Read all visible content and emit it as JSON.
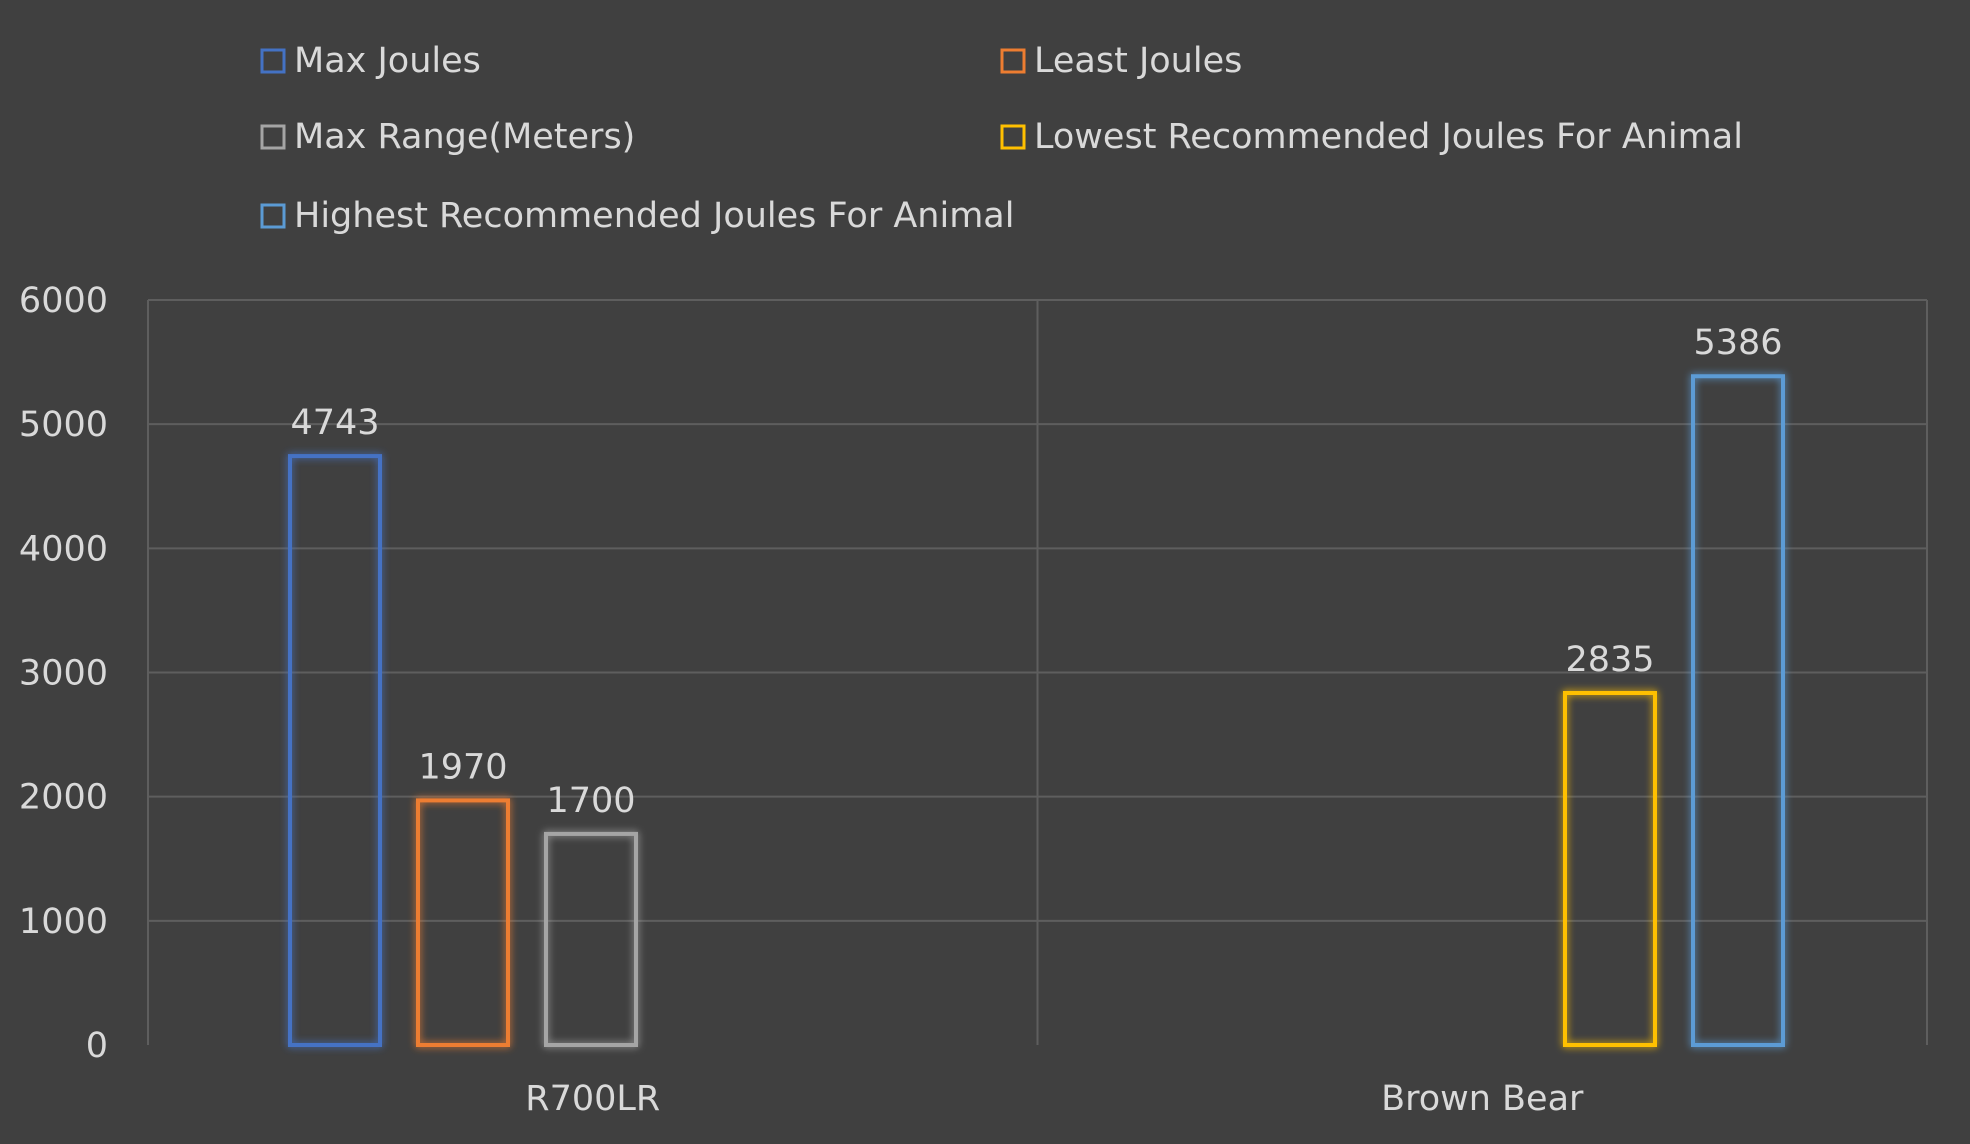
{
  "chart_data": {
    "type": "bar",
    "title": "",
    "xlabel": "",
    "ylabel": "",
    "ylim": [
      0,
      6000
    ],
    "yticks": [
      0,
      1000,
      2000,
      3000,
      4000,
      5000,
      6000
    ],
    "categories": [
      "R700LR",
      "Brown Bear"
    ],
    "grid": true,
    "legend_position": "top",
    "series": [
      {
        "name": "Max Joules",
        "color": "#4472c4",
        "values": [
          4743,
          null
        ]
      },
      {
        "name": "Least Joules",
        "color": "#ed7d31",
        "values": [
          1970,
          null
        ]
      },
      {
        "name": "Max Range(Meters)",
        "color": "#a5a5a5",
        "values": [
          1700,
          null
        ]
      },
      {
        "name": "Lowest Recommended Joules For Animal",
        "color": "#ffc000",
        "values": [
          null,
          2835
        ]
      },
      {
        "name": "Highest Recommended Joules For Animal",
        "color": "#5b9bd5",
        "values": [
          null,
          5386
        ]
      }
    ]
  }
}
